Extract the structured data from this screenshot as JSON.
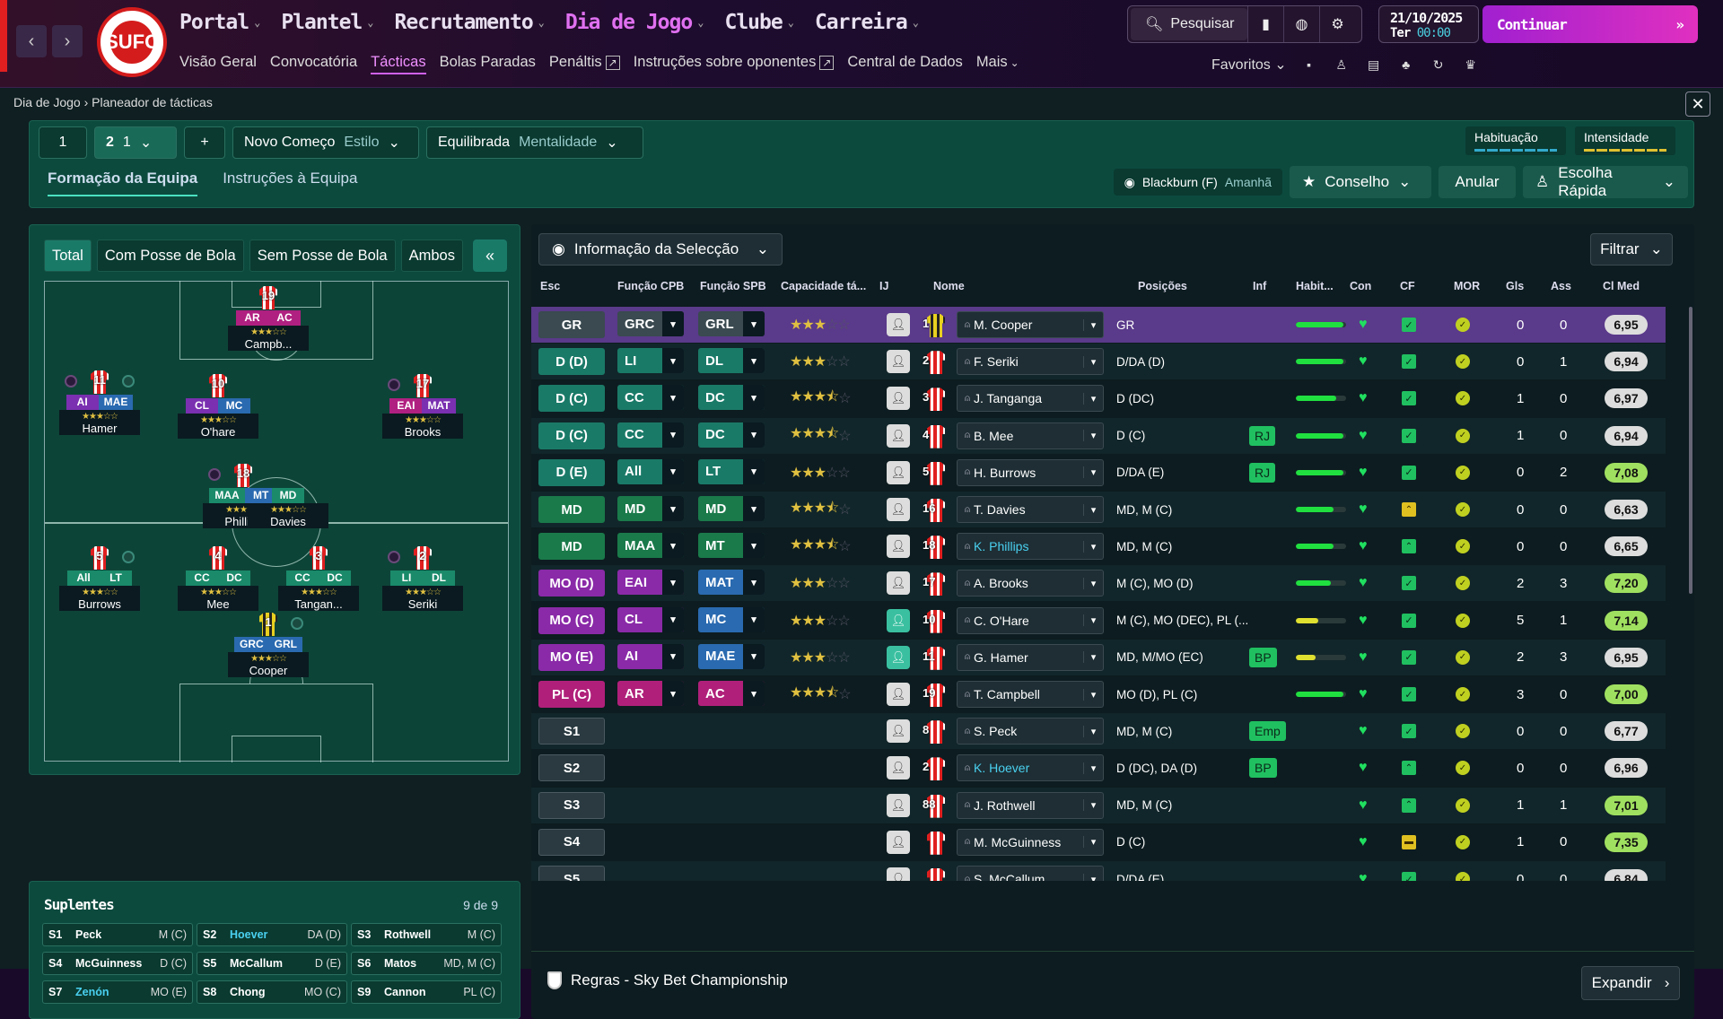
{
  "topnav": {
    "items": [
      {
        "label": "Portal"
      },
      {
        "label": "Plantel"
      },
      {
        "label": "Recrutamento"
      },
      {
        "label": "Dia de Jogo"
      },
      {
        "label": "Clube"
      },
      {
        "label": "Carreira"
      }
    ],
    "search_label": "Pesquisar",
    "date": "21/10/2025",
    "day": "Ter",
    "time": "00:00",
    "continue_label": "Continuar",
    "favorites_label": "Favoritos",
    "crest_text": "SUFC"
  },
  "subnav": {
    "items": [
      {
        "label": "Visão Geral"
      },
      {
        "label": "Convocatória"
      },
      {
        "label": "Tácticas"
      },
      {
        "label": "Bolas Paradas"
      },
      {
        "label": "Penáltis"
      },
      {
        "label": "Instruções sobre oponentes"
      },
      {
        "label": "Central de Dados"
      },
      {
        "label": "Mais"
      }
    ]
  },
  "breadcrumb": {
    "root": "Dia de Jogo",
    "current": "Planeador de tácticas"
  },
  "tactic": {
    "slot1": "1",
    "slot2": "2",
    "slot2_sub": "1",
    "style_value": "Novo Começo",
    "style_label": "Estilo",
    "mentality_value": "Equilibrada",
    "mentality_label": "Mentalidade",
    "familiarity_label": "Habituação",
    "intensity_label": "Intensidade",
    "tabs": [
      "Formação da Equipa",
      "Instruções à Equipa"
    ],
    "opponent": "Blackburn (F)",
    "opponent_when": "Amanhã",
    "advice_label": "Conselho",
    "undo_label": "Anular",
    "quickpick_label": "Escolha Rápida"
  },
  "formation": {
    "tabs": [
      "Total",
      "Com Posse de Bola",
      "Sem Posse de Bola",
      "Ambos"
    ],
    "players": [
      {
        "num": "19",
        "r1": "AR",
        "r2": "AC",
        "name": "Campb..."
      },
      {
        "num": "11",
        "r1": "AI",
        "r2": "MAE",
        "name": "Hamer"
      },
      {
        "num": "10",
        "r1": "CL",
        "r2": "MC",
        "name": "O'hare"
      },
      {
        "num": "17",
        "r1": "EAI",
        "r2": "MAT",
        "name": "Brooks"
      },
      {
        "num": "18",
        "r1": "MAA",
        "r2": "MT",
        "name": "Phillips"
      },
      {
        "num": "",
        "r1": "",
        "r2": "MD",
        "name": "Davies"
      },
      {
        "num": "5",
        "r1": "All",
        "r2": "LT",
        "name": "Burrows"
      },
      {
        "num": "4",
        "r1": "CC",
        "r2": "DC",
        "name": "Mee"
      },
      {
        "num": "3",
        "r1": "CC",
        "r2": "DC",
        "name": "Tangan..."
      },
      {
        "num": "2",
        "r1": "LI",
        "r2": "DL",
        "name": "Seriki"
      },
      {
        "num": "1",
        "r1": "GRC",
        "r2": "GRL",
        "name": "Cooper"
      }
    ]
  },
  "subs": {
    "title": "Suplentes",
    "count": "9 de 9",
    "items": [
      {
        "no": "S1",
        "name": "Peck",
        "pos": "M (C)"
      },
      {
        "no": "S2",
        "name": "Hoever",
        "pos": "DA (D)"
      },
      {
        "no": "S3",
        "name": "Rothwell",
        "pos": "M (C)"
      },
      {
        "no": "S4",
        "name": "McGuinness",
        "pos": "D (C)"
      },
      {
        "no": "S5",
        "name": "McCallum",
        "pos": "D (E)"
      },
      {
        "no": "S6",
        "name": "Matos",
        "pos": "MD, M (C)"
      },
      {
        "no": "S7",
        "name": "Zenón",
        "pos": "MO (E)"
      },
      {
        "no": "S8",
        "name": "Chong",
        "pos": "MO (C)"
      },
      {
        "no": "S9",
        "name": "Cannon",
        "pos": "PL (C)"
      }
    ]
  },
  "selection": {
    "info_label": "Informação da Selecção",
    "filter_label": "Filtrar",
    "headers": [
      "Esc",
      "Função CPB",
      "Função SPB",
      "Capacidade tá...",
      "IJ",
      "Nome",
      "Posições",
      "Inf",
      "Habit...",
      "Con",
      "CF",
      "MOR",
      "Gls",
      "Ass",
      "Cl Med"
    ],
    "rows": [
      {
        "pos": "GR",
        "cls": "gr",
        "r1": "GRC",
        "r2": "GRL",
        "stars": 3,
        "num": "1",
        "gk": true,
        "name": "M. Cooper",
        "positions": "GR",
        "inf": "",
        "hab": 95,
        "cf": "ok",
        "gls": "0",
        "ass": "0",
        "ci": "6,95"
      },
      {
        "pos": "D (D)",
        "cls": "d",
        "r1": "LI",
        "r2": "DL",
        "stars": 3,
        "num": "2",
        "name": "F. Seriki",
        "positions": "D/DA (D)",
        "inf": "",
        "hab": 95,
        "cf": "ok",
        "gls": "0",
        "ass": "1",
        "ci": "6,94"
      },
      {
        "pos": "D (C)",
        "cls": "d",
        "r1": "CC",
        "r2": "DC",
        "stars": 3.5,
        "num": "3",
        "name": "J. Tanganga",
        "positions": "D (DC)",
        "inf": "",
        "hab": 80,
        "cf": "ok",
        "gls": "1",
        "ass": "0",
        "ci": "6,97"
      },
      {
        "pos": "D (C)",
        "cls": "d",
        "r1": "CC",
        "r2": "DC",
        "stars": 3.5,
        "num": "4",
        "name": "B. Mee",
        "positions": "D (C)",
        "inf": "RJ",
        "hab": 95,
        "cf": "ok",
        "gls": "1",
        "ass": "0",
        "ci": "6,94"
      },
      {
        "pos": "D (E)",
        "cls": "d",
        "r1": "All",
        "r2": "LT",
        "stars": 3,
        "num": "5",
        "name": "H. Burrows",
        "positions": "D/DA (E)",
        "inf": "RJ",
        "hab": 95,
        "cf": "ok",
        "gls": "0",
        "ass": "2",
        "ci": "7,08"
      },
      {
        "pos": "MD",
        "cls": "md",
        "r1": "MD",
        "r2": "MD",
        "stars": 3.5,
        "num": "16",
        "name": "T. Davies",
        "positions": "MD, M (C)",
        "inf": "",
        "hab": 75,
        "cf": "up",
        "gls": "0",
        "ass": "0",
        "ci": "6,63"
      },
      {
        "pos": "MD",
        "cls": "md",
        "r1": "MAA",
        "r2": "MT",
        "stars": 3.5,
        "num": "18",
        "name": "K. Phillips",
        "blue": true,
        "positions": "MD, M (C)",
        "inf": "",
        "hab": 75,
        "cf": "up2",
        "gls": "0",
        "ass": "0",
        "ci": "6,65"
      },
      {
        "pos": "MO (D)",
        "cls": "mo",
        "r1": "EAI",
        "r2": "MAT",
        "stars": 3,
        "num": "17",
        "name": "A. Brooks",
        "positions": "M (C), MO (D)",
        "inf": "",
        "hab": 70,
        "cf": "ok",
        "gls": "2",
        "ass": "3",
        "ci": "7,20"
      },
      {
        "pos": "MO (C)",
        "cls": "mo",
        "r1": "CL",
        "r2": "MC",
        "stars": 3,
        "num": "10",
        "name": "C. O'Hare",
        "positions": "M (C), MO (DEC), PL (...",
        "inf": "",
        "hab": 45,
        "yellow": true,
        "cf": "ok",
        "gls": "5",
        "ass": "1",
        "ci": "7,14",
        "ijhl": true
      },
      {
        "pos": "MO (E)",
        "cls": "mo",
        "r1": "AI",
        "r2": "MAE",
        "stars": 3,
        "num": "11",
        "name": "G. Hamer",
        "positions": "MD, M/MO (EC)",
        "inf": "BP",
        "hab": 40,
        "yellow": true,
        "cf": "ok",
        "gls": "2",
        "ass": "3",
        "ci": "6,95",
        "ijhl": true
      },
      {
        "pos": "PL (C)",
        "cls": "pl",
        "r1": "AR",
        "r2": "AC",
        "stars": 3.5,
        "num": "19",
        "name": "T. Campbell",
        "positions": "MO (D), PL (C)",
        "inf": "",
        "hab": 95,
        "cf": "ok",
        "gls": "3",
        "ass": "0",
        "ci": "7,00"
      },
      {
        "pos": "S1",
        "cls": "s",
        "num": "8",
        "name": "S. Peck",
        "positions": "MD, M (C)",
        "inf": "Emp",
        "cf": "ok",
        "gls": "0",
        "ass": "0",
        "ci": "6,77"
      },
      {
        "pos": "S2",
        "cls": "s",
        "num": "2",
        "name": "K. Hoever",
        "blue": true,
        "positions": "D (DC), DA (D)",
        "inf": "BP",
        "cf": "up2",
        "gls": "0",
        "ass": "0",
        "ci": "6,96"
      },
      {
        "pos": "S3",
        "cls": "s",
        "num": "88",
        "name": "J. Rothwell",
        "positions": "MD, M (C)",
        "inf": "",
        "cf": "up2",
        "gls": "1",
        "ass": "1",
        "ci": "7,01"
      },
      {
        "pos": "S4",
        "cls": "s",
        "num": "",
        "name": "M. McGuinness",
        "positions": "D (C)",
        "inf": "",
        "cf": "yel",
        "gls": "1",
        "ass": "0",
        "ci": "7,35"
      },
      {
        "pos": "S5",
        "cls": "s",
        "num": "",
        "name": "S. McCallum",
        "positions": "D/DA (E)",
        "inf": "",
        "cf": "ok",
        "gls": "0",
        "ass": "0",
        "ci": "6,84"
      }
    ],
    "rules_label": "Regras - Sky Bet Championship",
    "expand_label": "Expandir"
  }
}
